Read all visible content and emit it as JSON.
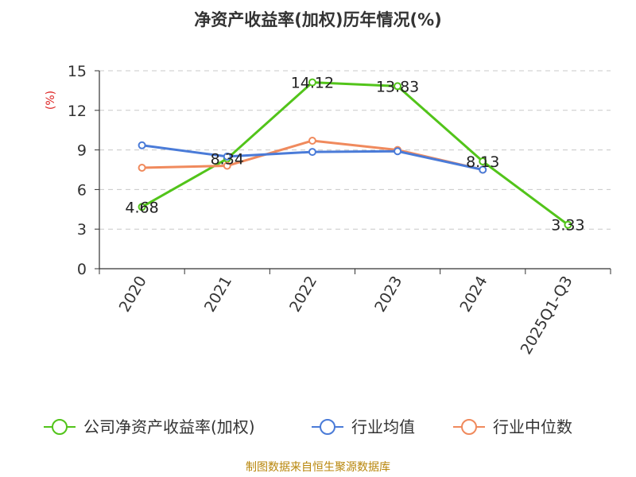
{
  "chart_data": {
    "type": "line",
    "title": "净资产收益率(加权)历年情况(%)",
    "ylabel": "(%)",
    "categories": [
      "2020",
      "2021",
      "2022",
      "2023",
      "2024",
      "2025Q1-Q3"
    ],
    "ylim": [
      0,
      15
    ],
    "yticks": [
      0,
      3,
      6,
      9,
      12,
      15
    ],
    "grid": true,
    "legend_position": "bottom",
    "series": [
      {
        "name": "公司净资产收益率(加权)",
        "color": "#52c41a",
        "values": [
          4.68,
          8.34,
          14.12,
          13.83,
          8.13,
          3.33
        ],
        "labels": [
          "4.68",
          "8.34",
          "14.12",
          "13.83",
          "8.13",
          "3.33"
        ]
      },
      {
        "name": "行业均值",
        "color": "#4a7bd8",
        "values": [
          9.35,
          8.5,
          8.85,
          8.9,
          7.5,
          null
        ]
      },
      {
        "name": "行业中位数",
        "color": "#f08a5d",
        "values": [
          7.65,
          7.8,
          9.7,
          9.0,
          7.5,
          null
        ]
      }
    ]
  },
  "source": "制图数据来自恒生聚源数据库"
}
